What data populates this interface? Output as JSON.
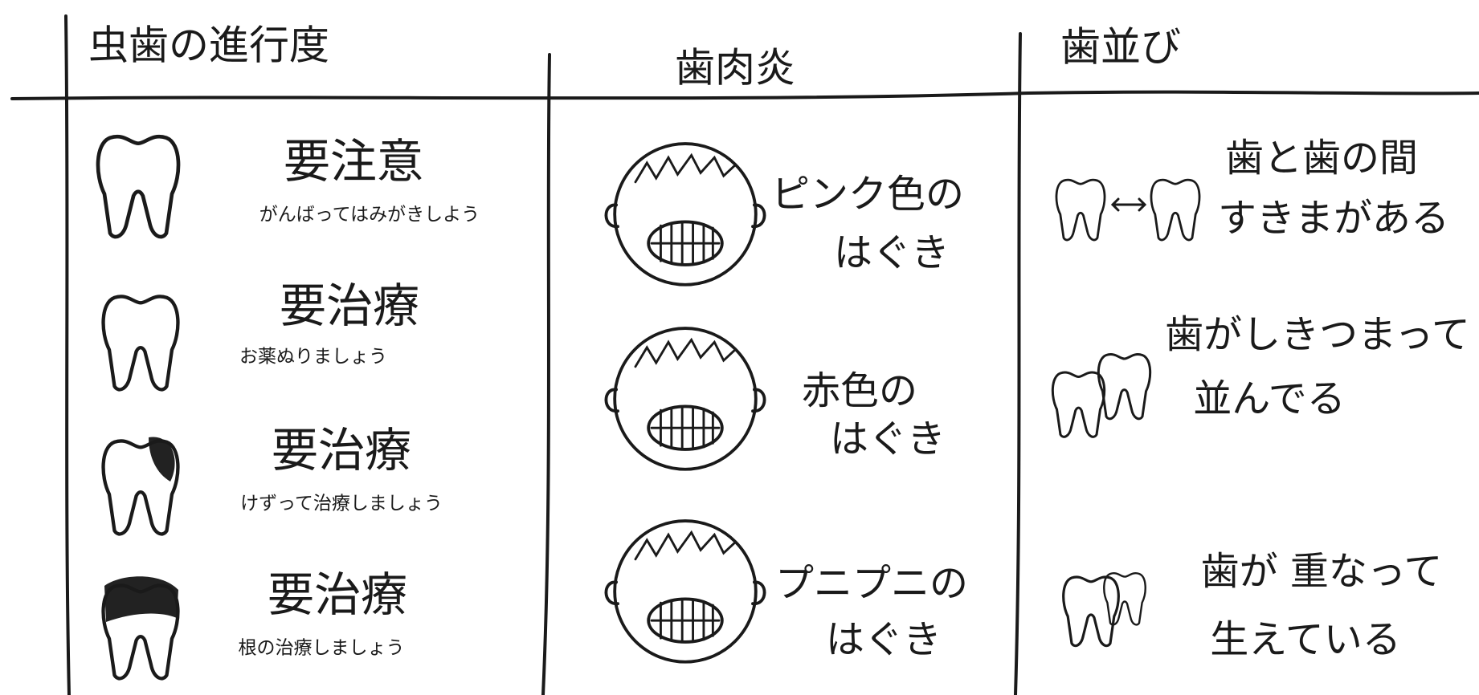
{
  "columns": [
    {
      "title": "虫歯の進行度",
      "items": [
        {
          "label": "要注意",
          "note": "がんばってはみがきしよう"
        },
        {
          "label": "要治療",
          "note": "お薬ぬりましょう"
        },
        {
          "label": "要治療",
          "note": "けずって治療しましょう"
        },
        {
          "label": "要治療",
          "note": "根の治療しましょう"
        }
      ]
    },
    {
      "title": "歯肉炎",
      "items": [
        {
          "lines": [
            "ピンク色の",
            "はぐき"
          ]
        },
        {
          "lines": [
            "赤色の",
            "はぐき"
          ]
        },
        {
          "lines": [
            "プニプニの",
            "はぐき"
          ]
        }
      ]
    },
    {
      "title": "歯並び",
      "items": [
        {
          "lines": [
            "歯と歯の間",
            "すきまがある"
          ]
        },
        {
          "lines": [
            "歯がしきつまって",
            "並んでる"
          ]
        },
        {
          "lines": [
            "歯が 重なって",
            "生えている"
          ]
        }
      ]
    }
  ]
}
